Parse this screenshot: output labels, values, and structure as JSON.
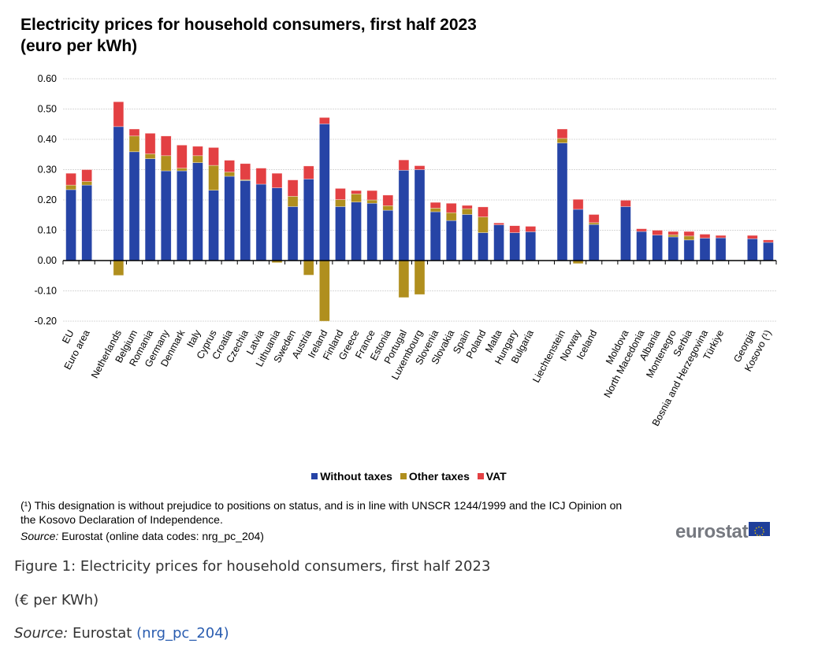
{
  "chart_data": {
    "type": "bar",
    "stacked": true,
    "title": "Electricity prices for household consumers, first half 2023",
    "subtitle": "(euro per kWh)",
    "ylim": [
      -0.2,
      0.6
    ],
    "yticks": [
      "0.60",
      "0.50",
      "0.40",
      "0.30",
      "0.20",
      "0.10",
      "0.00",
      "-0.10",
      "-0.20"
    ],
    "grid": true,
    "legend_position": "bottom",
    "categories": [
      "EU",
      "Euro area",
      "",
      "Netherlands",
      "Belgium",
      "Romania",
      "Germany",
      "Denmark",
      "Italy",
      "Cyprus",
      "Croatia",
      "Czechia",
      "Latvia",
      "Lithuania",
      "Sweden",
      "Austria",
      "Ireland",
      "Finland",
      "Greece",
      "France",
      "Estonia",
      "Portugal",
      "Luxembourg",
      "Slovenia",
      "Slovakia",
      "Spain",
      "Poland",
      "Malta",
      "Hungary",
      "Bulgaria",
      "",
      "Liechtenstein",
      "Norway",
      "Iceland",
      "",
      "Moldova",
      "North Macedonia",
      "Albania",
      "Montenegro",
      "Serbia",
      "Bosnia and Herzegovina",
      "Türkiye",
      "",
      "Georgia",
      "Kosovo (¹)"
    ],
    "series": [
      {
        "name": "Without taxes",
        "color": "#2644a6",
        "values": [
          0.234,
          0.249,
          null,
          0.442,
          0.359,
          0.336,
          0.296,
          0.296,
          0.323,
          0.232,
          0.278,
          0.264,
          0.252,
          0.24,
          0.178,
          0.269,
          0.451,
          0.178,
          0.193,
          0.189,
          0.166,
          0.298,
          0.3,
          0.161,
          0.132,
          0.152,
          0.092,
          0.118,
          0.092,
          0.095,
          null,
          0.388,
          0.169,
          0.119,
          null,
          0.178,
          0.096,
          0.084,
          0.078,
          0.068,
          0.074,
          0.075,
          null,
          0.072,
          0.06
        ]
      },
      {
        "name": "Other taxes",
        "color": "#b08f1e",
        "values": [
          0.015,
          0.012,
          null,
          -0.049,
          0.052,
          0.016,
          0.05,
          0.009,
          0.023,
          0.082,
          0.014,
          0.003,
          0.0,
          -0.007,
          0.034,
          -0.048,
          -0.2,
          0.023,
          0.027,
          0.011,
          0.015,
          -0.122,
          -0.112,
          0.012,
          0.026,
          0.019,
          0.052,
          0.0,
          0.0,
          0.0,
          null,
          0.015,
          -0.01,
          0.006,
          null,
          0.0,
          0.0,
          0.0,
          0.007,
          0.013,
          0.0,
          0.0,
          null,
          0.0,
          0.0
        ]
      },
      {
        "name": "VAT",
        "color": "#e34043",
        "values": [
          0.039,
          0.039,
          null,
          0.082,
          0.023,
          0.068,
          0.065,
          0.076,
          0.031,
          0.059,
          0.039,
          0.053,
          0.053,
          0.048,
          0.054,
          0.043,
          0.021,
          0.037,
          0.011,
          0.031,
          0.035,
          0.034,
          0.013,
          0.019,
          0.031,
          0.011,
          0.033,
          0.006,
          0.023,
          0.018,
          null,
          0.031,
          0.033,
          0.027,
          null,
          0.021,
          0.009,
          0.016,
          0.011,
          0.015,
          0.013,
          0.008,
          null,
          0.011,
          0.008
        ]
      }
    ]
  },
  "notes": {
    "footnote": "(¹) This designation is without prejudice to positions on status, and is in line with UNSCR 1244/1999 and the ICJ Opinion on the Kosovo Declaration of Independence.",
    "source_label": "Source:",
    "source_text": " Eurostat (online data codes: nrg_pc_204)",
    "logo": "eurostat"
  },
  "caption": {
    "figure": "Figure 1: Electricity prices for household consumers, first half 2023",
    "unit": "(€ per KWh)",
    "source_label": "Source:",
    "source_text": " Eurostat ",
    "source_link": "(nrg_pc_204)"
  }
}
